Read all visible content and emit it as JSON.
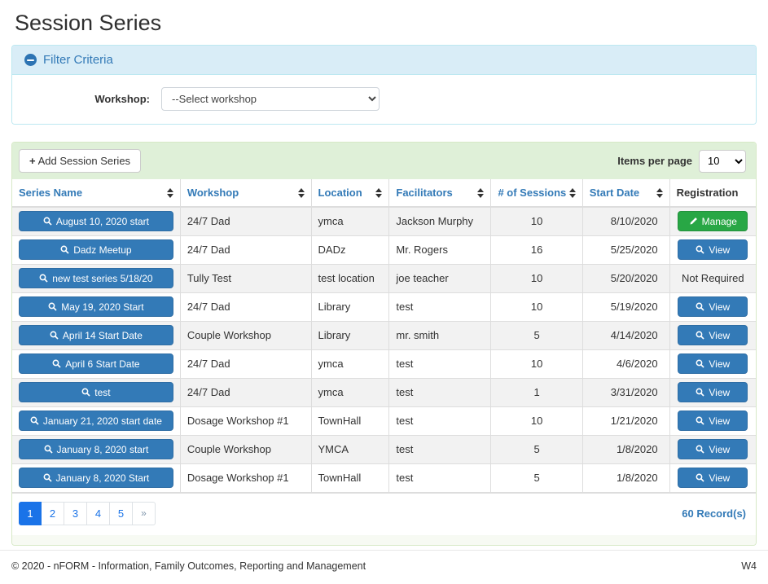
{
  "page": {
    "title": "Session Series"
  },
  "filter": {
    "title": "Filter Criteria",
    "collapse_icon": "minus-circle-icon",
    "workshop_label": "Workshop:",
    "workshop_selected": "--Select workshop"
  },
  "toolbar": {
    "add_button_label": "Add Session Series",
    "add_button_icon": "plus-icon",
    "items_per_page_label": "Items per page",
    "items_per_page_value": "10"
  },
  "table": {
    "columns": [
      {
        "label": "Series Name",
        "sortable": true
      },
      {
        "label": "Workshop",
        "sortable": true
      },
      {
        "label": "Location",
        "sortable": true
      },
      {
        "label": "Facilitators",
        "sortable": true
      },
      {
        "label": "# of Sessions",
        "sortable": true
      },
      {
        "label": "Start Date",
        "sortable": true
      },
      {
        "label": "Registration",
        "sortable": false
      }
    ],
    "rows": [
      {
        "series_name": "August 10, 2020 start",
        "workshop": "24/7 Dad",
        "location": "ymca",
        "facilitators": "Jackson Murphy",
        "sessions": "10",
        "start_date": "8/10/2020",
        "registration": {
          "type": "manage",
          "label": "Manage"
        }
      },
      {
        "series_name": "Dadz Meetup",
        "workshop": "24/7 Dad",
        "location": "DADz",
        "facilitators": "Mr. Rogers",
        "sessions": "16",
        "start_date": "5/25/2020",
        "registration": {
          "type": "view",
          "label": "View"
        }
      },
      {
        "series_name": "new test series 5/18/20",
        "workshop": "Tully Test",
        "location": "test location",
        "facilitators": "joe teacher",
        "sessions": "10",
        "start_date": "5/20/2020",
        "registration": {
          "type": "text",
          "label": "Not Required"
        }
      },
      {
        "series_name": "May 19, 2020 Start",
        "workshop": "24/7 Dad",
        "location": "Library",
        "facilitators": "test",
        "sessions": "10",
        "start_date": "5/19/2020",
        "registration": {
          "type": "view",
          "label": "View"
        }
      },
      {
        "series_name": "April 14 Start Date",
        "workshop": "Couple Workshop",
        "location": "Library",
        "facilitators": "mr. smith",
        "sessions": "5",
        "start_date": "4/14/2020",
        "registration": {
          "type": "view",
          "label": "View"
        }
      },
      {
        "series_name": "April 6 Start Date",
        "workshop": "24/7 Dad",
        "location": "ymca",
        "facilitators": "test",
        "sessions": "10",
        "start_date": "4/6/2020",
        "registration": {
          "type": "view",
          "label": "View"
        }
      },
      {
        "series_name": "test",
        "workshop": "24/7 Dad",
        "location": "ymca",
        "facilitators": "test",
        "sessions": "1",
        "start_date": "3/31/2020",
        "registration": {
          "type": "view",
          "label": "View"
        }
      },
      {
        "series_name": "January 21, 2020 start date",
        "workshop": "Dosage Workshop #1",
        "location": "TownHall",
        "facilitators": "test",
        "sessions": "10",
        "start_date": "1/21/2020",
        "registration": {
          "type": "view",
          "label": "View"
        }
      },
      {
        "series_name": "January 8, 2020 start",
        "workshop": "Couple Workshop",
        "location": "YMCA",
        "facilitators": "test",
        "sessions": "5",
        "start_date": "1/8/2020",
        "registration": {
          "type": "view",
          "label": "View"
        }
      },
      {
        "series_name": "January 8, 2020 Start",
        "workshop": "Dosage Workshop #1",
        "location": "TownHall",
        "facilitators": "test",
        "sessions": "5",
        "start_date": "1/8/2020",
        "registration": {
          "type": "view",
          "label": "View"
        }
      }
    ]
  },
  "pagination": {
    "pages": [
      "1",
      "2",
      "3",
      "4",
      "5",
      "»"
    ],
    "active_page": "1",
    "record_count": "60 Record(s)"
  },
  "footer": {
    "copyright": "© 2020 - nFORM - Information, Family Outcomes, Reporting and Management",
    "version": "W4"
  },
  "colors": {
    "primary_blue": "#337ab7",
    "success_green": "#28a745",
    "info_bg": "#d9edf7",
    "info_border": "#bce8f1",
    "panel_green_bg": "#dff0d8",
    "panel_green_border": "#d6e9c6",
    "stripe_gray": "#f2f2f2",
    "pagination_blue": "#1a73e8"
  }
}
